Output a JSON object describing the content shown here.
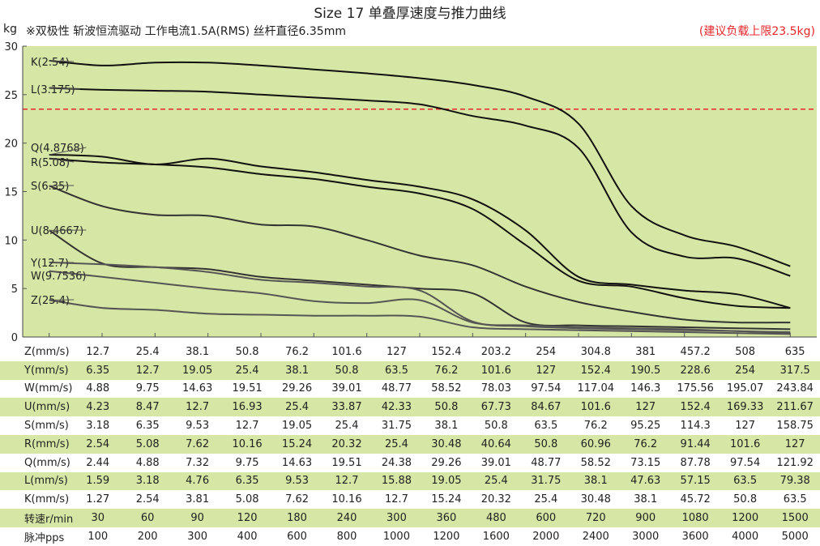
{
  "title": "Size 17 单叠厚速度与推力曲线",
  "subtitle": "※双极性 斩波恒流驱动 工作电流1.5A(RMS)  丝杆直径6.35mm",
  "note": "(建议负载上限23.5kg)",
  "colors": {
    "plot_bg": "#d6e6a4",
    "limit": "#e8262b",
    "curve_dark": "#111111",
    "curve_gray": "#555555",
    "row_shade": "#d6e6a4"
  },
  "chart_data": {
    "type": "line",
    "ylabel": "kg",
    "ylim": [
      0,
      30
    ],
    "yticks": [
      0,
      5,
      10,
      15,
      20,
      25,
      30
    ],
    "grid": false,
    "reference_line": {
      "y": 23.5,
      "style": "dashed",
      "color": "#e8262b"
    },
    "x_points": 15,
    "series": [
      {
        "name": "K(2.54)",
        "color": "#111111",
        "values": [
          28.5,
          28.0,
          28.3,
          28.3,
          28.0,
          27.6,
          27.2,
          26.7,
          26.0,
          24.8,
          22.0,
          13.5,
          10.5,
          9.3,
          7.3
        ]
      },
      {
        "name": "L(3.175)",
        "color": "#111111",
        "values": [
          25.7,
          25.5,
          25.4,
          25.3,
          25.0,
          24.7,
          24.4,
          24.0,
          22.8,
          21.8,
          19.5,
          10.8,
          8.3,
          8.1,
          6.3
        ]
      },
      {
        "name": "Q(4.8768)",
        "color": "#111111",
        "values": [
          18.8,
          18.6,
          17.8,
          18.4,
          17.6,
          17.0,
          16.2,
          15.5,
          14.2,
          11.0,
          6.2,
          5.4,
          4.8,
          4.4,
          3.0
        ]
      },
      {
        "name": "R(5.08)",
        "color": "#111111",
        "values": [
          18.4,
          18.0,
          17.8,
          17.5,
          16.8,
          16.3,
          15.5,
          14.8,
          13.2,
          9.5,
          5.8,
          5.2,
          4.0,
          3.2,
          3.0
        ]
      },
      {
        "name": "S(6.35)",
        "color": "#333333",
        "values": [
          15.6,
          13.5,
          12.6,
          12.5,
          11.6,
          11.4,
          10.0,
          8.4,
          7.4,
          5.2,
          3.6,
          2.6,
          1.8,
          1.5,
          1.5
        ]
      },
      {
        "name": "U(8.4667)",
        "color": "#333333",
        "values": [
          11.0,
          7.6,
          7.2,
          7.0,
          6.2,
          5.8,
          5.4,
          5.0,
          4.5,
          1.5,
          1.2,
          1.1,
          1.0,
          0.9,
          0.8
        ]
      },
      {
        "name": "Y(12.7)",
        "color": "#555555",
        "values": [
          7.7,
          7.5,
          7.2,
          6.7,
          5.9,
          5.6,
          5.2,
          4.8,
          1.6,
          1.1,
          0.9,
          0.8,
          0.7,
          0.6,
          0.5
        ]
      },
      {
        "name": "W(9.7536)",
        "color": "#555555",
        "values": [
          6.8,
          6.2,
          5.6,
          5.0,
          4.5,
          3.7,
          3.5,
          3.8,
          1.5,
          1.2,
          1.0,
          0.9,
          0.8,
          0.6,
          0.4
        ]
      },
      {
        "name": "Z(25.4)",
        "color": "#555555",
        "values": [
          3.8,
          3.0,
          2.8,
          2.4,
          2.3,
          2.2,
          2.2,
          2.1,
          1.0,
          0.8,
          0.7,
          0.6,
          0.5,
          0.4,
          0.3
        ]
      }
    ]
  },
  "speed_table": [
    {
      "label": "Z(mm/s)",
      "shade": false,
      "values": [
        "12.7",
        "25.4",
        "38.1",
        "50.8",
        "76.2",
        "101.6",
        "127",
        "152.4",
        "203.2",
        "254",
        "304.8",
        "381",
        "457.2",
        "508",
        "635"
      ]
    },
    {
      "label": "Y(mm/s)",
      "shade": true,
      "values": [
        "6.35",
        "12.7",
        "19.05",
        "25.4",
        "38.1",
        "50.8",
        "63.5",
        "76.2",
        "101.6",
        "127",
        "152.4",
        "190.5",
        "228.6",
        "254",
        "317.5"
      ]
    },
    {
      "label": "W(mm/s)",
      "shade": false,
      "values": [
        "4.88",
        "9.75",
        "14.63",
        "19.51",
        "29.26",
        "39.01",
        "48.77",
        "58.52",
        "78.03",
        "97.54",
        "117.04",
        "146.3",
        "175.56",
        "195.07",
        "243.84"
      ]
    },
    {
      "label": "U(mm/s)",
      "shade": true,
      "values": [
        "4.23",
        "8.47",
        "12.7",
        "16.93",
        "25.4",
        "33.87",
        "42.33",
        "50.8",
        "67.73",
        "84.67",
        "101.6",
        "127",
        "152.4",
        "169.33",
        "211.67"
      ]
    },
    {
      "label": "S(mm/s)",
      "shade": false,
      "values": [
        "3.18",
        "6.35",
        "9.53",
        "12.7",
        "19.05",
        "25.4",
        "31.75",
        "38.1",
        "50.8",
        "63.5",
        "76.2",
        "95.25",
        "114.3",
        "127",
        "158.75"
      ]
    },
    {
      "label": "R(mm/s)",
      "shade": true,
      "values": [
        "2.54",
        "5.08",
        "7.62",
        "10.16",
        "15.24",
        "20.32",
        "25.4",
        "30.48",
        "40.64",
        "50.8",
        "60.96",
        "76.2",
        "91.44",
        "101.6",
        "127"
      ]
    },
    {
      "label": "Q(mm/s)",
      "shade": false,
      "values": [
        "2.44",
        "4.88",
        "7.32",
        "9.75",
        "14.63",
        "19.51",
        "24.38",
        "29.26",
        "39.01",
        "48.77",
        "58.52",
        "73.15",
        "87.78",
        "97.54",
        "121.92"
      ]
    },
    {
      "label": "L(mm/s)",
      "shade": true,
      "values": [
        "1.59",
        "3.18",
        "4.76",
        "6.35",
        "9.53",
        "12.7",
        "15.88",
        "19.05",
        "25.4",
        "31.75",
        "38.1",
        "47.63",
        "57.15",
        "63.5",
        "79.38"
      ]
    },
    {
      "label": "K(mm/s)",
      "shade": false,
      "values": [
        "1.27",
        "2.54",
        "3.81",
        "5.08",
        "7.62",
        "10.16",
        "12.7",
        "15.24",
        "20.32",
        "25.4",
        "30.48",
        "38.1",
        "45.72",
        "50.8",
        "63.5"
      ]
    },
    {
      "label": "转速r/min",
      "shade": true,
      "values": [
        "30",
        "60",
        "90",
        "120",
        "180",
        "240",
        "300",
        "360",
        "480",
        "600",
        "720",
        "900",
        "1080",
        "1200",
        "1500"
      ]
    },
    {
      "label": "脉冲pps",
      "shade": false,
      "values": [
        "100",
        "200",
        "300",
        "400",
        "600",
        "800",
        "1000",
        "1200",
        "1600",
        "2000",
        "2400",
        "3000",
        "3600",
        "4000",
        "5000"
      ]
    }
  ]
}
